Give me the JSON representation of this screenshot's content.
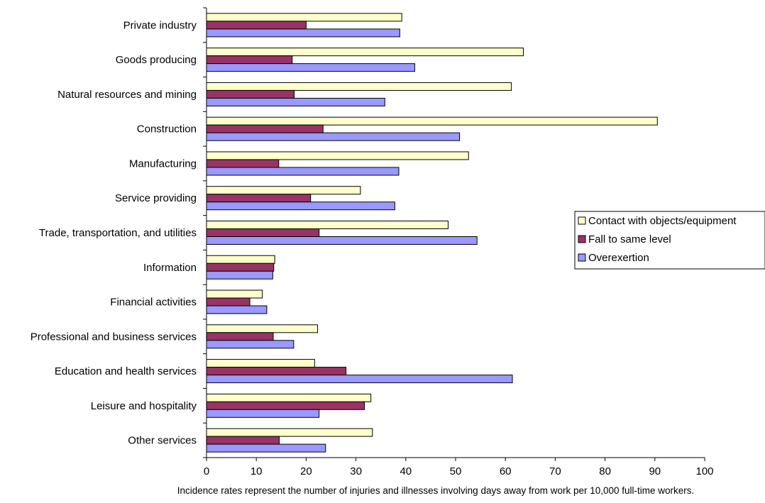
{
  "chart_data": {
    "type": "bar",
    "orientation": "horizontal",
    "categories": [
      "Private industry",
      "Goods producing",
      "Natural resources and mining",
      "Construction",
      "Manufacturing",
      "Service providing",
      "Trade, transportation, and utilities",
      "Information",
      "Financial activities",
      "Professional and business services",
      "Education and health services",
      "Leisure and hospitality",
      "Other services"
    ],
    "series": [
      {
        "name": "Contact with objects/equipment",
        "color": "#ffffcc",
        "values": [
          39.2,
          63.6,
          61.2,
          90.5,
          52.6,
          30.9,
          48.5,
          13.7,
          11.2,
          22.3,
          21.7,
          33.0,
          33.3
        ]
      },
      {
        "name": "Fall to same level",
        "color": "#993366",
        "values": [
          20.0,
          17.2,
          17.6,
          23.4,
          14.5,
          20.9,
          22.6,
          13.5,
          8.7,
          13.4,
          28.0,
          31.7,
          14.6
        ]
      },
      {
        "name": "Overexertion",
        "color": "#9999ff",
        "values": [
          38.8,
          41.8,
          35.8,
          50.8,
          38.6,
          37.8,
          54.3,
          13.3,
          12.1,
          17.5,
          61.4,
          22.6,
          23.9
        ]
      }
    ],
    "xlim": [
      0,
      100
    ],
    "x_ticks": [
      0,
      10,
      20,
      30,
      40,
      50,
      60,
      70,
      80,
      90,
      100
    ],
    "grid": false,
    "legend_position": "right",
    "note": "Incidence rates represent the number of injuries and illnesses involving days away from work per 10,000 full-time workers."
  }
}
